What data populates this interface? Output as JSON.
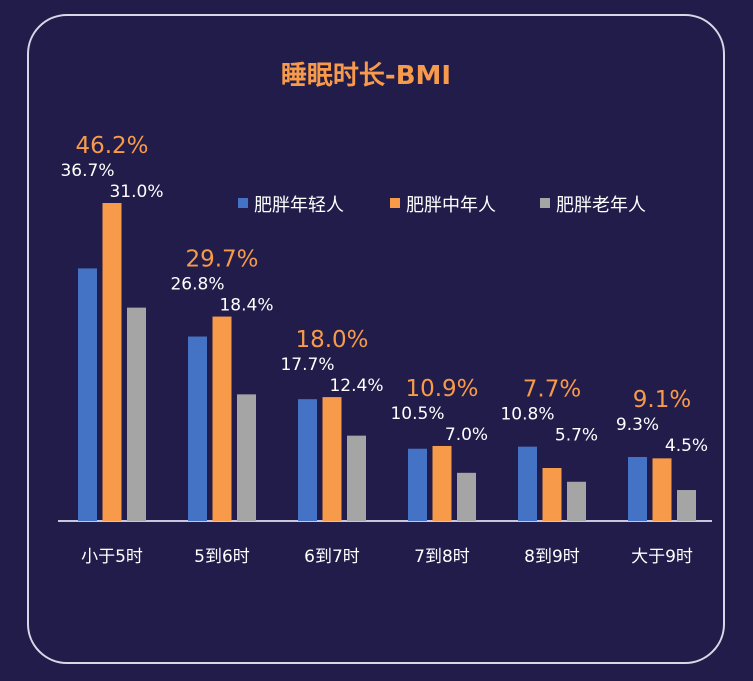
{
  "chart_data": {
    "type": "bar",
    "title": "睡眠时长-BMI",
    "categories": [
      "小于5时",
      "5到6时",
      "6到7时",
      "7到8时",
      "8到9时",
      "大于9时"
    ],
    "series": [
      {
        "name": "肥胖年轻人",
        "color": "#4472c4",
        "values": [
          36.7,
          26.8,
          17.7,
          10.5,
          10.8,
          9.3
        ]
      },
      {
        "name": "肥胖中年人",
        "color": "#f79a4a",
        "values": [
          46.2,
          29.7,
          18.0,
          10.9,
          7.7,
          9.1
        ]
      },
      {
        "name": "肥胖老年人",
        "color": "#a5a5a5",
        "values": [
          31.0,
          18.4,
          12.4,
          7.0,
          5.7,
          4.5
        ]
      }
    ],
    "value_suffix": "%",
    "ylim": [
      0,
      50
    ],
    "grid": false,
    "legend": "top-right",
    "colors": {
      "background": "#221c4a",
      "title": "#f79a4a",
      "text": "#ffffff",
      "axis": "#c9c6dc"
    }
  }
}
